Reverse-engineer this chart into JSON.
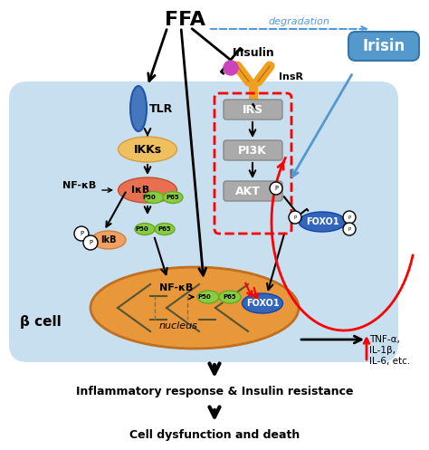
{
  "title": "FFA",
  "bg_color": "#ddeeff",
  "cell_color": "#c8dff0",
  "nucleus_color": "#e8a060",
  "nucleus_inner_color": "#f0b870",
  "irisin_box_color": "#5599cc",
  "irisin_text": "Irisin",
  "tlr_color": "#4477bb",
  "ikks_color": "#f0c060",
  "ikb_color": "#e87050",
  "p50p65_green": "#88cc44",
  "gray_box": "#aaaaaa",
  "foxo1_color": "#3366bb",
  "nfkb_text_color": "#333333",
  "beta_cell_text": "β cell",
  "nucleus_text": "nucleus",
  "inflammatory_text": "Inflammatory response & Insulin resistance",
  "cell_death_text": "Cell dysfunction and death",
  "degradation_text": "degradation"
}
